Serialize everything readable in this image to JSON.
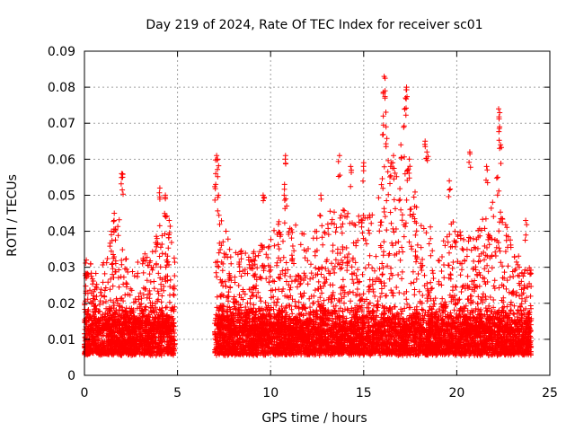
{
  "chart_data": {
    "type": "scatter",
    "title": "Day 219 of 2024, Rate Of TEC Index for receiver sc01",
    "xlabel": "GPS time / hours",
    "ylabel": "ROTI / TECUs",
    "xlim": [
      0,
      25
    ],
    "ylim": [
      0,
      0.09
    ],
    "xticks": [
      "0",
      "5",
      "10",
      "15",
      "20",
      "25"
    ],
    "yticks": [
      "0",
      "0.01",
      "0.02",
      "0.03",
      "0.04",
      "0.05",
      "0.06",
      "0.07",
      "0.08",
      "0.09"
    ],
    "grid": true,
    "marker": "+",
    "color": "#ff0000",
    "coverage": [
      [
        0.0,
        4.85
      ],
      [
        7.0,
        24.0
      ]
    ],
    "baseline_range": [
      0.004,
      0.02
    ],
    "activity_profile": [
      {
        "x": 0.2,
        "y": 0.032
      },
      {
        "x": 0.8,
        "y": 0.028
      },
      {
        "x": 1.3,
        "y": 0.036
      },
      {
        "x": 1.8,
        "y": 0.045
      },
      {
        "x": 2.5,
        "y": 0.028
      },
      {
        "x": 3.2,
        "y": 0.035
      },
      {
        "x": 3.8,
        "y": 0.04
      },
      {
        "x": 4.4,
        "y": 0.046
      },
      {
        "x": 4.8,
        "y": 0.034
      },
      {
        "x": 7.1,
        "y": 0.048
      },
      {
        "x": 8.0,
        "y": 0.035
      },
      {
        "x": 9.0,
        "y": 0.035
      },
      {
        "x": 10.0,
        "y": 0.038
      },
      {
        "x": 10.8,
        "y": 0.05
      },
      {
        "x": 11.5,
        "y": 0.04
      },
      {
        "x": 12.5,
        "y": 0.04
      },
      {
        "x": 13.5,
        "y": 0.048
      },
      {
        "x": 14.5,
        "y": 0.045
      },
      {
        "x": 15.5,
        "y": 0.045
      },
      {
        "x": 16.2,
        "y": 0.06
      },
      {
        "x": 17.2,
        "y": 0.065
      },
      {
        "x": 18.0,
        "y": 0.05
      },
      {
        "x": 19.0,
        "y": 0.035
      },
      {
        "x": 20.0,
        "y": 0.045
      },
      {
        "x": 21.0,
        "y": 0.04
      },
      {
        "x": 22.0,
        "y": 0.05
      },
      {
        "x": 22.8,
        "y": 0.04
      },
      {
        "x": 23.6,
        "y": 0.03
      }
    ],
    "peaks": [
      {
        "x": 0.1,
        "y": 0.032
      },
      {
        "x": 1.45,
        "y": 0.04
      },
      {
        "x": 1.6,
        "y": 0.045
      },
      {
        "x": 2.0,
        "y": 0.056
      },
      {
        "x": 2.05,
        "y": 0.055
      },
      {
        "x": 3.9,
        "y": 0.038
      },
      {
        "x": 4.05,
        "y": 0.052
      },
      {
        "x": 4.35,
        "y": 0.05
      },
      {
        "x": 4.55,
        "y": 0.043
      },
      {
        "x": 7.1,
        "y": 0.061
      },
      {
        "x": 7.15,
        "y": 0.06
      },
      {
        "x": 7.05,
        "y": 0.053
      },
      {
        "x": 7.2,
        "y": 0.05
      },
      {
        "x": 9.6,
        "y": 0.05
      },
      {
        "x": 10.8,
        "y": 0.061
      },
      {
        "x": 10.75,
        "y": 0.053
      },
      {
        "x": 12.7,
        "y": 0.05
      },
      {
        "x": 13.7,
        "y": 0.061
      },
      {
        "x": 14.3,
        "y": 0.058
      },
      {
        "x": 15.0,
        "y": 0.059
      },
      {
        "x": 16.1,
        "y": 0.083
      },
      {
        "x": 16.15,
        "y": 0.079
      },
      {
        "x": 16.05,
        "y": 0.072
      },
      {
        "x": 16.2,
        "y": 0.069
      },
      {
        "x": 16.6,
        "y": 0.061
      },
      {
        "x": 16.45,
        "y": 0.058
      },
      {
        "x": 17.3,
        "y": 0.08
      },
      {
        "x": 17.25,
        "y": 0.077
      },
      {
        "x": 17.2,
        "y": 0.074
      },
      {
        "x": 17.0,
        "y": 0.064
      },
      {
        "x": 17.45,
        "y": 0.06
      },
      {
        "x": 18.3,
        "y": 0.065
      },
      {
        "x": 18.4,
        "y": 0.062
      },
      {
        "x": 19.6,
        "y": 0.054
      },
      {
        "x": 20.7,
        "y": 0.062
      },
      {
        "x": 21.6,
        "y": 0.058
      },
      {
        "x": 22.25,
        "y": 0.074
      },
      {
        "x": 22.3,
        "y": 0.069
      },
      {
        "x": 22.35,
        "y": 0.064
      },
      {
        "x": 22.2,
        "y": 0.055
      },
      {
        "x": 23.7,
        "y": 0.043
      }
    ]
  }
}
